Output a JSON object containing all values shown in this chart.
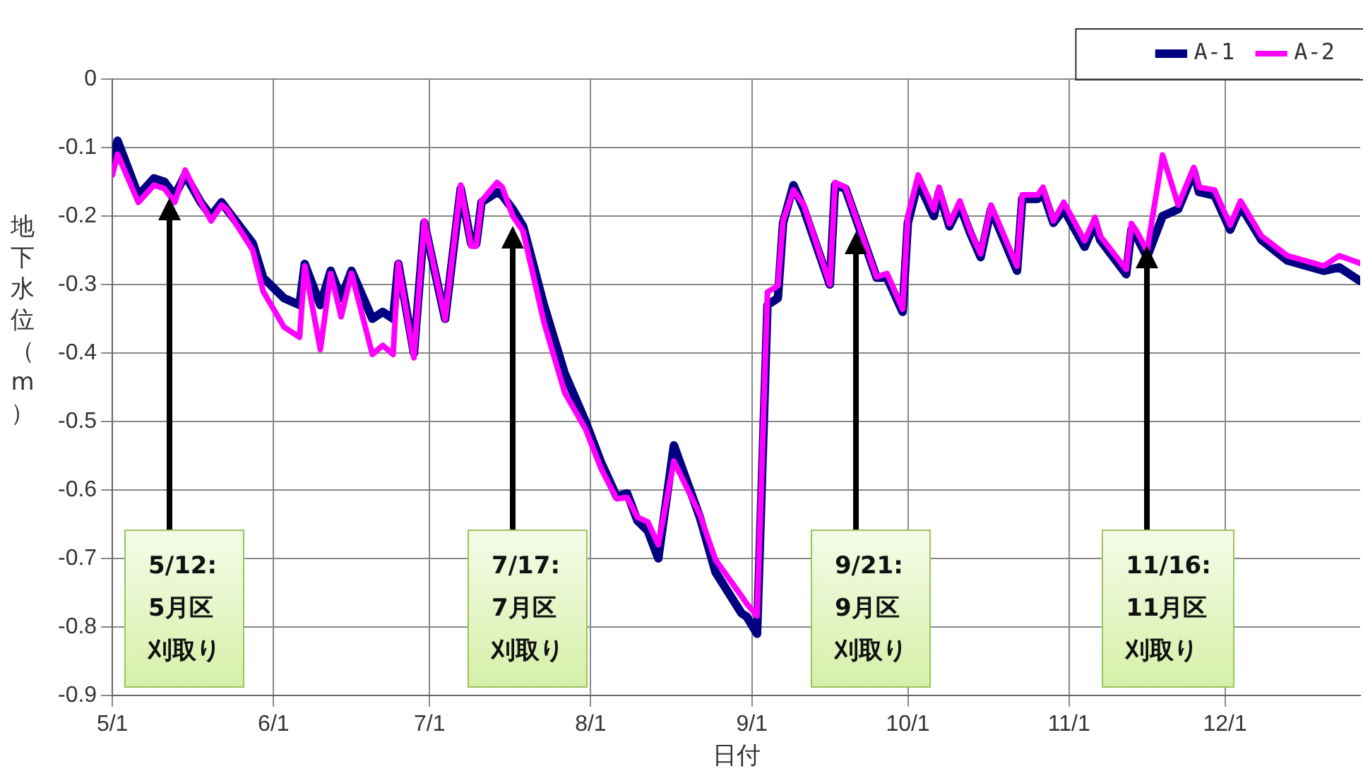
{
  "chart_data": {
    "type": "line",
    "xlabel": "日付",
    "ylabel": "地下水位（m）",
    "grid": true,
    "legend": "top right",
    "marker": "none",
    "x": [
      "--05-01",
      "--05-02",
      "--05-06",
      "--05-09",
      "--05-11",
      "--05-13",
      "--05-15",
      "--05-18",
      "--05-20",
      "--05-22",
      "--05-23",
      "--05-28",
      "--05-30",
      "--06-03",
      "--06-06",
      "--06-07",
      "--06-10",
      "--06-12",
      "--06-14",
      "--06-16",
      "--06-20",
      "--06-22",
      "--06-24",
      "--06-25",
      "--06-28",
      "--06-30",
      "--07-04",
      "--07-07",
      "--07-09",
      "--07-10",
      "--07-11",
      "--07-14",
      "--07-15",
      "--07-17",
      "--07-19",
      "--07-23",
      "--07-27",
      "--07-31",
      "--08-03",
      "--08-06",
      "--08-08",
      "--08-10",
      "--08-12",
      "--08-14",
      "--08-17",
      "--08-22",
      "--08-25",
      "--08-30",
      "--08-31",
      "--09-02",
      "--09-04",
      "--09-06",
      "--09-07",
      "--09-09",
      "--09-11",
      "--09-16",
      "--09-17",
      "--09-19",
      "--09-25",
      "--09-27",
      "--09-30",
      "--10-01",
      "--10-03",
      "--10-06",
      "--10-07",
      "--10-09",
      "--10-11",
      "--10-13",
      "--10-15",
      "--10-17",
      "--10-22",
      "--10-23",
      "--10-26",
      "--10-27",
      "--10-29",
      "--10-31",
      "--11-04",
      "--11-06",
      "--11-07",
      "--11-12",
      "--11-13",
      "--11-14",
      "--11-16",
      "--11-19",
      "--11-22",
      "--11-25",
      "--11-26",
      "--11-29",
      "--12-02",
      "--12-04",
      "--12-08",
      "--12-13",
      "--12-20",
      "--12-23",
      "--12-27"
    ],
    "xlim": [
      "--05-01",
      "--12-27"
    ],
    "xticks": [
      {
        "value": "--05-01",
        "label": "5/1"
      },
      {
        "value": "--06-01",
        "label": "6/1"
      },
      {
        "value": "--07-01",
        "label": "7/1"
      },
      {
        "value": "--08-01",
        "label": "8/1"
      },
      {
        "value": "--09-01",
        "label": "9/1"
      },
      {
        "value": "--10-01",
        "label": "10/1"
      },
      {
        "value": "--11-01",
        "label": "11/1"
      },
      {
        "value": "--12-01",
        "label": "12/1"
      }
    ],
    "ylim": [
      -0.9,
      0
    ],
    "yticks": [
      -0.9,
      -0.8,
      -0.7,
      -0.6,
      -0.5,
      -0.4,
      -0.3,
      -0.2,
      -0.1,
      0
    ],
    "series": [
      {
        "name": "A-1",
        "color": "#000080",
        "values": [
          -0.12,
          -0.09,
          -0.17,
          -0.145,
          -0.15,
          -0.17,
          -0.14,
          -0.18,
          -0.2,
          -0.18,
          -0.19,
          -0.24,
          -0.29,
          -0.32,
          -0.33,
          -0.27,
          -0.33,
          -0.28,
          -0.32,
          -0.28,
          -0.35,
          -0.34,
          -0.35,
          -0.27,
          -0.4,
          -0.21,
          -0.35,
          -0.16,
          -0.24,
          -0.24,
          -0.18,
          -0.165,
          -0.17,
          -0.19,
          -0.215,
          -0.33,
          -0.43,
          -0.5,
          -0.56,
          -0.61,
          -0.605,
          -0.645,
          -0.66,
          -0.7,
          -0.535,
          -0.64,
          -0.72,
          -0.78,
          -0.785,
          -0.81,
          -0.33,
          -0.32,
          -0.21,
          -0.155,
          -0.19,
          -0.3,
          -0.155,
          -0.16,
          -0.29,
          -0.29,
          -0.34,
          -0.21,
          -0.15,
          -0.2,
          -0.165,
          -0.215,
          -0.185,
          -0.225,
          -0.26,
          -0.19,
          -0.28,
          -0.175,
          -0.175,
          -0.165,
          -0.21,
          -0.19,
          -0.245,
          -0.21,
          -0.235,
          -0.285,
          -0.22,
          -0.23,
          -0.26,
          -0.2,
          -0.19,
          -0.135,
          -0.165,
          -0.17,
          -0.22,
          -0.185,
          -0.235,
          -0.265,
          -0.28,
          -0.275,
          -0.295
        ]
      },
      {
        "name": "A-2",
        "color": "#ff00ff",
        "values": [
          -0.14,
          -0.11,
          -0.18,
          -0.155,
          -0.16,
          -0.18,
          -0.133,
          -0.18,
          -0.207,
          -0.184,
          -0.19,
          -0.25,
          -0.31,
          -0.362,
          -0.377,
          -0.273,
          -0.395,
          -0.284,
          -0.347,
          -0.284,
          -0.402,
          -0.389,
          -0.402,
          -0.269,
          -0.407,
          -0.207,
          -0.351,
          -0.155,
          -0.244,
          -0.244,
          -0.178,
          -0.151,
          -0.158,
          -0.2,
          -0.222,
          -0.355,
          -0.458,
          -0.511,
          -0.569,
          -0.613,
          -0.611,
          -0.64,
          -0.647,
          -0.68,
          -0.558,
          -0.636,
          -0.702,
          -0.755,
          -0.766,
          -0.784,
          -0.311,
          -0.302,
          -0.207,
          -0.162,
          -0.184,
          -0.3,
          -0.151,
          -0.158,
          -0.289,
          -0.284,
          -0.336,
          -0.2,
          -0.14,
          -0.191,
          -0.158,
          -0.211,
          -0.178,
          -0.222,
          -0.255,
          -0.184,
          -0.273,
          -0.169,
          -0.169,
          -0.158,
          -0.207,
          -0.18,
          -0.236,
          -0.202,
          -0.229,
          -0.278,
          -0.211,
          -0.222,
          -0.251,
          -0.111,
          -0.184,
          -0.129,
          -0.158,
          -0.162,
          -0.213,
          -0.178,
          -0.229,
          -0.258,
          -0.273,
          -0.258,
          -0.269
        ]
      }
    ],
    "annotations": [
      {
        "text": "5/12:5月区刈取り",
        "x": "--05-12",
        "y": -0.19
      },
      {
        "text": "7/17:7月区刈取り",
        "x": "--07-17",
        "y": -0.23
      },
      {
        "text": "9/21:9月区刈取り",
        "x": "--09-21",
        "y": -0.24
      },
      {
        "text": "11/16:11月区刈取り",
        "x": "--11-16",
        "y": -0.26
      }
    ]
  }
}
